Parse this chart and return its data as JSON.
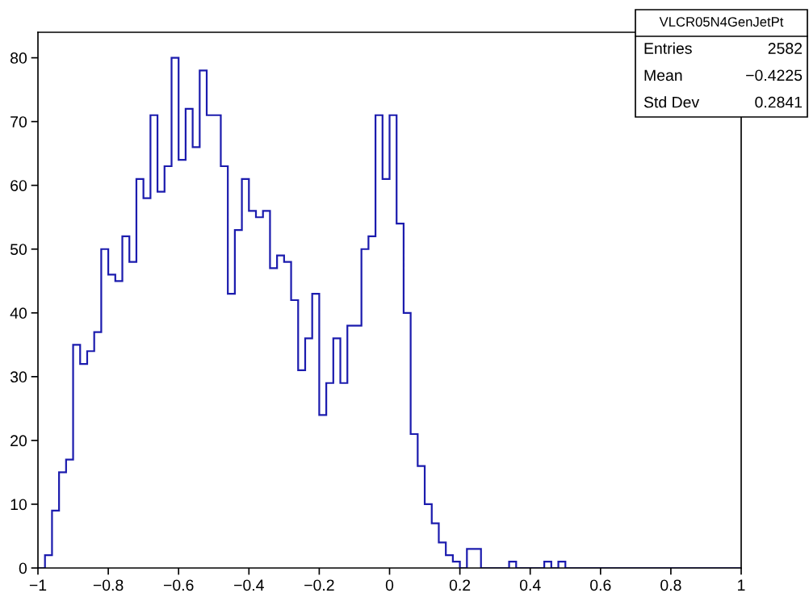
{
  "chart_data": {
    "type": "histogram",
    "title": "VLCR05N4GenJetPt",
    "bins": [
      -1,
      -0.98,
      -0.96,
      -0.94,
      -0.92,
      -0.9,
      -0.88,
      -0.86,
      -0.84,
      -0.82,
      -0.8,
      -0.78,
      -0.76,
      -0.74,
      -0.72,
      -0.7,
      -0.68,
      -0.66,
      -0.64,
      -0.62,
      -0.6,
      -0.58,
      -0.56,
      -0.54,
      -0.52,
      -0.5,
      -0.48,
      -0.46,
      -0.44,
      -0.42,
      -0.4,
      -0.38,
      -0.36,
      -0.34,
      -0.32,
      -0.3,
      -0.28,
      -0.26,
      -0.24,
      -0.22,
      -0.2,
      -0.18,
      -0.16,
      -0.14,
      -0.12,
      -0.1,
      -0.08,
      -0.06,
      -0.04,
      -0.02,
      0,
      0.02,
      0.04,
      0.06,
      0.08,
      0.1,
      0.12,
      0.14,
      0.16,
      0.18,
      0.2,
      0.22,
      0.24,
      0.26,
      0.28,
      0.3,
      0.32,
      0.34,
      0.36,
      0.38,
      0.4,
      0.42,
      0.44,
      0.46,
      0.48,
      0.5,
      0.52,
      0.54,
      0.56,
      0.58,
      0.6,
      0.62,
      0.64,
      0.66,
      0.68,
      0.7,
      0.72,
      0.74,
      0.76,
      0.78,
      0.8,
      0.82,
      0.84,
      0.86,
      0.88,
      0.9,
      0.92,
      0.94,
      0.96,
      0.98,
      1
    ],
    "values": [
      0,
      2,
      9,
      15,
      17,
      35,
      32,
      34,
      37,
      50,
      46,
      45,
      52,
      48,
      61,
      58,
      71,
      59,
      63,
      80,
      64,
      72,
      66,
      78,
      71,
      71,
      63,
      43,
      53,
      61,
      56,
      55,
      56,
      47,
      49,
      48,
      42,
      31,
      36,
      43,
      24,
      29,
      36,
      29,
      38,
      38,
      50,
      52,
      71,
      61,
      71,
      54,
      40,
      21,
      16,
      10,
      7,
      4,
      2,
      1,
      0,
      3,
      3,
      0,
      0,
      0,
      0,
      1,
      0,
      0,
      0,
      0,
      1,
      0,
      1,
      0,
      0,
      0,
      0,
      0,
      0,
      0,
      0,
      0,
      0,
      0,
      0,
      0,
      0,
      0,
      0,
      0,
      0,
      0,
      0,
      0,
      0,
      0,
      0,
      0
    ],
    "color": "#1c1cae",
    "xlim": [
      -1,
      1
    ],
    "xticks": [
      {
        "value": -1,
        "label": "−1"
      },
      {
        "value": -0.8,
        "label": "−0.8"
      },
      {
        "value": -0.6,
        "label": "−0.6"
      },
      {
        "value": -0.4,
        "label": "−0.4"
      },
      {
        "value": -0.2,
        "label": "−0.2"
      },
      0,
      0.2,
      0.4,
      0.6,
      0.8,
      1
    ],
    "ylim": [
      0,
      84
    ],
    "yticks": [
      0,
      10,
      20,
      30,
      40,
      50,
      60,
      70,
      80
    ],
    "annotations": [
      "Entries",
      "2582",
      "Mean",
      "−0.4225",
      "Std Dev",
      "0.2841"
    ]
  }
}
